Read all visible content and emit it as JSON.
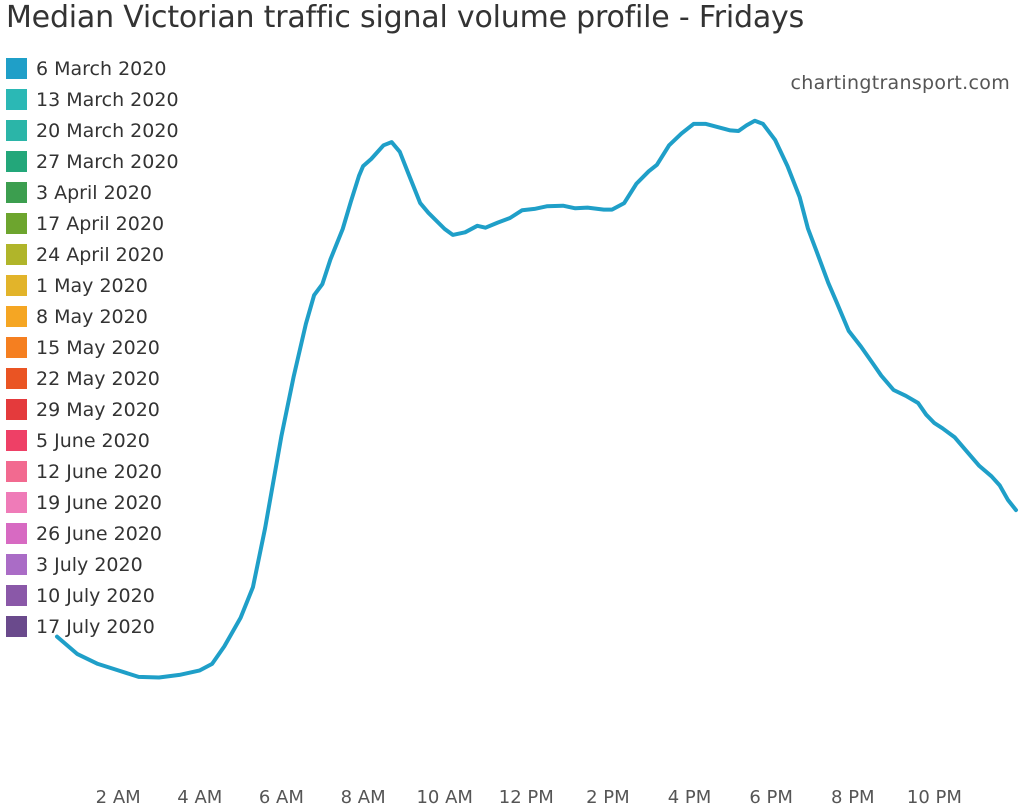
{
  "chart_data": {
    "type": "line",
    "title": "Median Victorian traffic signal volume profile - Fridays",
    "xlabel": "",
    "ylabel": "",
    "x_unit": "hour of day",
    "xlim": [
      0.5,
      24
    ],
    "ylim": [
      0,
      100
    ],
    "grid": false,
    "legend_position": "top-left",
    "x_ticks": [
      {
        "hour": 2,
        "label": "2 AM"
      },
      {
        "hour": 4,
        "label": "4 AM"
      },
      {
        "hour": 6,
        "label": "6 AM"
      },
      {
        "hour": 8,
        "label": "8 AM"
      },
      {
        "hour": 10,
        "label": "10 AM"
      },
      {
        "hour": 12,
        "label": "12 PM"
      },
      {
        "hour": 14,
        "label": "2 PM"
      },
      {
        "hour": 16,
        "label": "4 PM"
      },
      {
        "hour": 18,
        "label": "6 PM"
      },
      {
        "hour": 20,
        "label": "8 PM"
      },
      {
        "hour": 22,
        "label": "10 PM"
      }
    ],
    "legend": [
      {
        "label": "6 March 2020",
        "color": "#1f9fc8"
      },
      {
        "label": "13 March 2020",
        "color": "#2bb8b5"
      },
      {
        "label": "20 March 2020",
        "color": "#2bb5a8"
      },
      {
        "label": "27 March 2020",
        "color": "#23a77a"
      },
      {
        "label": "3 April 2020",
        "color": "#3c9e4f"
      },
      {
        "label": "17 April 2020",
        "color": "#6da52e"
      },
      {
        "label": "24 April 2020",
        "color": "#b0b52a"
      },
      {
        "label": "1 May 2020",
        "color": "#e2b42a"
      },
      {
        "label": "8 May 2020",
        "color": "#f5a623"
      },
      {
        "label": "15 May 2020",
        "color": "#f57f20"
      },
      {
        "label": "22 May 2020",
        "color": "#ea5423"
      },
      {
        "label": "29 May 2020",
        "color": "#e43a3c"
      },
      {
        "label": "5 June 2020",
        "color": "#ee4066"
      },
      {
        "label": "12 June 2020",
        "color": "#f26a90"
      },
      {
        "label": "19 June 2020",
        "color": "#ef7bb8"
      },
      {
        "label": "26 June 2020",
        "color": "#d76ac2"
      },
      {
        "label": "3 July 2020",
        "color": "#aa6cc6"
      },
      {
        "label": "10 July 2020",
        "color": "#8a58a8"
      },
      {
        "label": "17 July 2020",
        "color": "#6a4a8c"
      }
    ],
    "series": [
      {
        "legend_ref": "6 March 2020",
        "color": "#1f9fc8",
        "points": [
          [
            0.5,
            16.7
          ],
          [
            1.0,
            14.0
          ],
          [
            1.5,
            12.5
          ],
          [
            2.0,
            11.5
          ],
          [
            2.5,
            10.5
          ],
          [
            3.0,
            10.4
          ],
          [
            3.5,
            10.8
          ],
          [
            4.0,
            11.5
          ],
          [
            4.3,
            12.5
          ],
          [
            4.6,
            15.2
          ],
          [
            5.0,
            19.6
          ],
          [
            5.3,
            24.3
          ],
          [
            5.6,
            33.4
          ],
          [
            6.0,
            47.6
          ],
          [
            6.3,
            56.8
          ],
          [
            6.6,
            64.9
          ],
          [
            6.8,
            69.3
          ],
          [
            7.0,
            71.0
          ],
          [
            7.2,
            74.8
          ],
          [
            7.5,
            79.5
          ],
          [
            7.7,
            83.7
          ],
          [
            7.9,
            87.7
          ],
          [
            8.0,
            89.2
          ],
          [
            8.2,
            90.3
          ],
          [
            8.5,
            92.4
          ],
          [
            8.7,
            92.9
          ],
          [
            8.9,
            91.4
          ],
          [
            9.1,
            88.2
          ],
          [
            9.4,
            83.5
          ],
          [
            9.6,
            82.0
          ],
          [
            10.0,
            79.5
          ],
          [
            10.2,
            78.6
          ],
          [
            10.5,
            79.0
          ],
          [
            10.8,
            80.0
          ],
          [
            11.0,
            79.7
          ],
          [
            11.3,
            80.5
          ],
          [
            11.6,
            81.2
          ],
          [
            11.9,
            82.4
          ],
          [
            12.2,
            82.6
          ],
          [
            12.5,
            83.0
          ],
          [
            12.9,
            83.1
          ],
          [
            13.2,
            82.7
          ],
          [
            13.5,
            82.8
          ],
          [
            13.9,
            82.5
          ],
          [
            14.1,
            82.5
          ],
          [
            14.4,
            83.5
          ],
          [
            14.7,
            86.5
          ],
          [
            15.0,
            88.4
          ],
          [
            15.2,
            89.4
          ],
          [
            15.5,
            92.4
          ],
          [
            15.8,
            94.2
          ],
          [
            16.1,
            95.7
          ],
          [
            16.4,
            95.7
          ],
          [
            16.7,
            95.2
          ],
          [
            17.0,
            94.7
          ],
          [
            17.2,
            94.6
          ],
          [
            17.4,
            95.5
          ],
          [
            17.6,
            96.2
          ],
          [
            17.8,
            95.7
          ],
          [
            18.1,
            93.2
          ],
          [
            18.4,
            89.2
          ],
          [
            18.7,
            84.4
          ],
          [
            18.9,
            79.6
          ],
          [
            19.1,
            76.3
          ],
          [
            19.4,
            71.2
          ],
          [
            19.6,
            68.3
          ],
          [
            19.9,
            63.8
          ],
          [
            20.2,
            61.4
          ],
          [
            20.5,
            58.7
          ],
          [
            20.7,
            56.9
          ],
          [
            21.0,
            54.7
          ],
          [
            21.3,
            53.8
          ],
          [
            21.6,
            52.7
          ],
          [
            21.8,
            50.9
          ],
          [
            22.0,
            49.6
          ],
          [
            22.2,
            48.8
          ],
          [
            22.5,
            47.4
          ],
          [
            22.8,
            45.2
          ],
          [
            23.1,
            43.0
          ],
          [
            23.4,
            41.4
          ],
          [
            23.6,
            40.0
          ],
          [
            23.8,
            37.8
          ],
          [
            24.0,
            36.2
          ]
        ]
      }
    ]
  },
  "watermark": "chartingtransport.com"
}
